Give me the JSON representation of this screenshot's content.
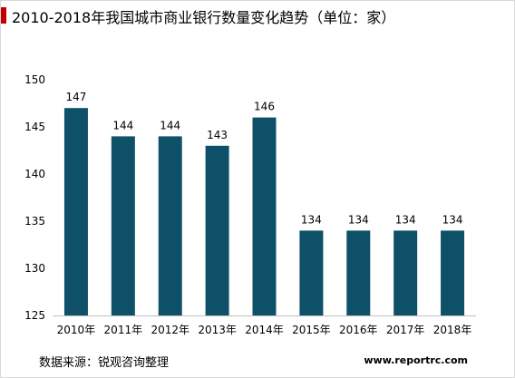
{
  "header": {
    "title": "2010-2018年我国城市商业银行数量变化趋势（单位：家）"
  },
  "footer": {
    "source": "数据来源：锐观咨询整理",
    "website": "www.reportrc.com"
  },
  "colors": {
    "bar": "#0f5069",
    "accent": "#c00000",
    "axis": "#bfbfbf"
  },
  "chart_data": {
    "type": "bar",
    "title": "2010-2018年我国城市商业银行数量变化趋势（单位：家）",
    "xlabel": "",
    "ylabel": "",
    "categories": [
      "2010年",
      "2011年",
      "2012年",
      "2013年",
      "2014年",
      "2015年",
      "2016年",
      "2017年",
      "2018年"
    ],
    "values": [
      147,
      144,
      144,
      143,
      146,
      134,
      134,
      134,
      134
    ],
    "ylim": [
      125,
      150
    ],
    "yticks": [
      125,
      130,
      135,
      140,
      145,
      150
    ],
    "grid": false,
    "legend": "none"
  }
}
